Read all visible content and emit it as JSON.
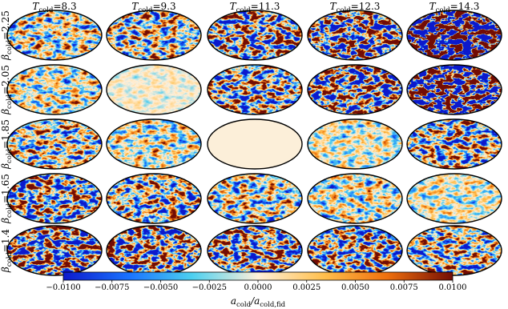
{
  "columns": [
    [
      "T",
      "cold",
      "=8.3"
    ],
    [
      "T",
      "cold",
      "=9.3"
    ],
    [
      "T",
      "cold",
      "=11.3"
    ],
    [
      "T",
      "cold",
      "=12.3"
    ],
    [
      "T",
      "cold",
      "=14.3"
    ]
  ],
  "rows": [
    [
      "β",
      "cold",
      "=2.25"
    ],
    [
      "β",
      "cold",
      "=2.05"
    ],
    [
      "β",
      "cold",
      "=1.85"
    ],
    [
      "β",
      "cold",
      "=1.65"
    ],
    [
      "β",
      "cold",
      "=1.4"
    ]
  ],
  "colorbar": {
    "lim": [
      -0.01,
      0.01
    ],
    "ticks": [
      {
        "value": -0.01,
        "label": "−0.0100"
      },
      {
        "value": -0.0075,
        "label": "−0.0075"
      },
      {
        "value": -0.005,
        "label": "−0.0050"
      },
      {
        "value": -0.0025,
        "label": "−0.0025"
      },
      {
        "value": 0,
        "label": "0.0000"
      },
      {
        "value": 0.0025,
        "label": "0.0025"
      },
      {
        "value": 0.005,
        "label": "0.0050"
      },
      {
        "value": 0.0075,
        "label": "0.0075"
      },
      {
        "value": 0.01,
        "label": "0.0100"
      }
    ],
    "label": [
      "a",
      "cold",
      "/a",
      "cold,fid"
    ]
  }
}
